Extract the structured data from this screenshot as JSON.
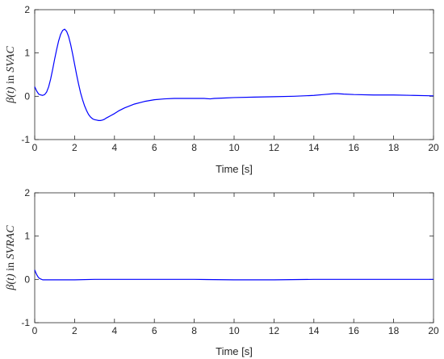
{
  "chart_data": [
    {
      "type": "line",
      "ylabel_prefix": "β(t)",
      "ylabel_mid": " in ",
      "ylabel_suffix": "SVAC",
      "xlabel": "Time [s]",
      "xlim": [
        0,
        20
      ],
      "ylim": [
        -1,
        2
      ],
      "xticks": [
        0,
        2,
        4,
        6,
        8,
        10,
        12,
        14,
        16,
        18,
        20
      ],
      "yticks": [
        -1,
        0,
        1,
        2
      ],
      "grid": false,
      "series": [
        {
          "color": "#0000ff",
          "x": [
            0,
            0.1,
            0.2,
            0.3,
            0.4,
            0.5,
            0.6,
            0.7,
            0.8,
            0.9,
            1.0,
            1.1,
            1.2,
            1.3,
            1.4,
            1.5,
            1.6,
            1.7,
            1.8,
            1.9,
            2.0,
            2.1,
            2.2,
            2.3,
            2.4,
            2.5,
            2.6,
            2.7,
            2.8,
            2.9,
            3.0,
            3.1,
            3.2,
            3.3,
            3.4,
            3.5,
            3.6,
            3.8,
            4.0,
            4.2,
            4.5,
            5.0,
            5.5,
            6.0,
            6.5,
            7.0,
            7.5,
            8.0,
            8.5,
            8.8,
            9.0,
            9.5,
            10.0,
            11.0,
            12.0,
            13.0,
            14.0,
            14.5,
            15.0,
            15.2,
            15.5,
            16.0,
            17.0,
            18.0,
            19.0,
            20.0
          ],
          "y": [
            0.22,
            0.12,
            0.05,
            0.03,
            0.02,
            0.04,
            0.1,
            0.22,
            0.4,
            0.62,
            0.86,
            1.08,
            1.28,
            1.43,
            1.52,
            1.55,
            1.5,
            1.38,
            1.2,
            0.98,
            0.74,
            0.5,
            0.28,
            0.08,
            -0.08,
            -0.22,
            -0.33,
            -0.42,
            -0.48,
            -0.52,
            -0.54,
            -0.55,
            -0.56,
            -0.56,
            -0.55,
            -0.53,
            -0.5,
            -0.45,
            -0.4,
            -0.34,
            -0.27,
            -0.18,
            -0.12,
            -0.08,
            -0.06,
            -0.05,
            -0.05,
            -0.05,
            -0.05,
            -0.06,
            -0.05,
            -0.04,
            -0.03,
            -0.02,
            -0.01,
            0.0,
            0.02,
            0.04,
            0.06,
            0.06,
            0.05,
            0.04,
            0.03,
            0.03,
            0.02,
            0.01
          ]
        }
      ]
    },
    {
      "type": "line",
      "ylabel_prefix": "β(t)",
      "ylabel_mid": " in ",
      "ylabel_suffix": "SVRAC",
      "xlabel": "Time [s]",
      "xlim": [
        0,
        20
      ],
      "ylim": [
        -1,
        2
      ],
      "xticks": [
        0,
        2,
        4,
        6,
        8,
        10,
        12,
        14,
        16,
        18,
        20
      ],
      "yticks": [
        -1,
        0,
        1,
        2
      ],
      "grid": false,
      "series": [
        {
          "color": "#0000ff",
          "x": [
            0,
            0.05,
            0.1,
            0.15,
            0.2,
            0.25,
            0.3,
            0.4,
            0.5,
            0.6,
            0.8,
            1.0,
            1.5,
            2.0,
            3.0,
            4.0,
            6.0,
            8.0,
            10.0,
            12.0,
            14.0,
            16.0,
            18.0,
            20.0
          ],
          "y": [
            0.22,
            0.16,
            0.11,
            0.07,
            0.04,
            0.02,
            0.01,
            -0.01,
            -0.01,
            -0.01,
            -0.01,
            -0.01,
            -0.01,
            -0.01,
            0.0,
            0.0,
            0.0,
            0.0,
            -0.01,
            -0.01,
            0.0,
            0.0,
            0.0,
            0.0
          ]
        }
      ]
    }
  ]
}
